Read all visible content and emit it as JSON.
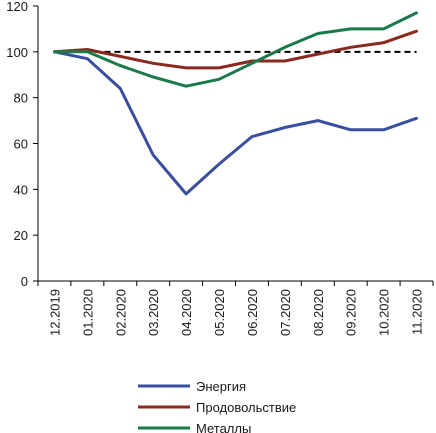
{
  "chart_data": {
    "type": "line",
    "categories": [
      "12.2019",
      "01.2020",
      "02.2020",
      "03.2020",
      "04.2020",
      "05.2020",
      "06.2020",
      "07.2020",
      "08.2020",
      "09.2020",
      "10.2020",
      "11.2020"
    ],
    "ylim": [
      0,
      120
    ],
    "yticks": [
      0,
      20,
      40,
      60,
      80,
      100,
      120
    ],
    "reference_line": {
      "value": 100,
      "style": "dashed",
      "color": "#000000"
    },
    "grid": false,
    "legend_position": "bottom",
    "series": [
      {
        "name": "Энергия",
        "color": "#3a4e9e",
        "values": [
          100,
          97,
          84,
          55,
          38,
          51,
          63,
          67,
          70,
          66,
          66,
          71
        ]
      },
      {
        "name": "Продовольствие",
        "color": "#8a2a1e",
        "values": [
          100,
          101,
          98,
          95,
          93,
          93,
          96,
          96,
          99,
          102,
          104,
          109
        ]
      },
      {
        "name": "Металлы",
        "color": "#1a7a4a",
        "values": [
          100,
          100,
          94,
          89,
          85,
          88,
          95,
          102,
          108,
          110,
          110,
          117
        ]
      }
    ],
    "title": "",
    "xlabel": "",
    "ylabel": ""
  }
}
